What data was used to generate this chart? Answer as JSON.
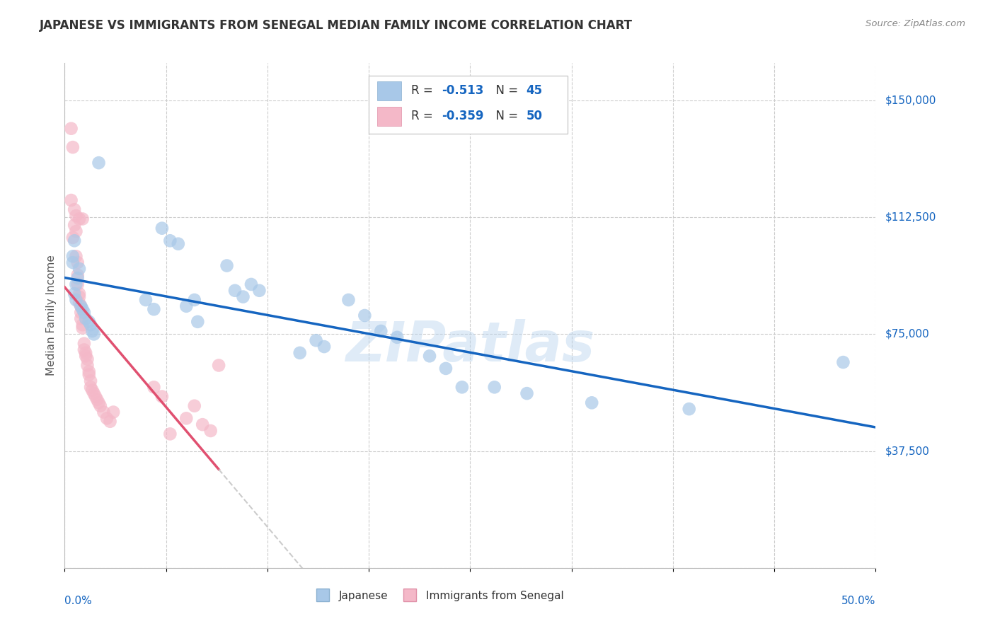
{
  "title": "JAPANESE VS IMMIGRANTS FROM SENEGAL MEDIAN FAMILY INCOME CORRELATION CHART",
  "source": "Source: ZipAtlas.com",
  "ylabel": "Median Family Income",
  "watermark": "ZIPatlas",
  "yticks": [
    0,
    37500,
    75000,
    112500,
    150000
  ],
  "legend_japanese_R": "-0.513",
  "legend_japanese_N": "45",
  "legend_senegal_R": "-0.359",
  "legend_senegal_N": "50",
  "blue_color": "#a8c8e8",
  "pink_color": "#f4b8c8",
  "blue_line_color": "#1565c0",
  "pink_line_color": "#e05070",
  "dashed_line_color": "#cccccc",
  "grid_color": "#cccccc",
  "background_color": "#ffffff",
  "title_color": "#333333",
  "source_color": "#888888",
  "axis_value_color": "#1565c0",
  "ylabel_color": "#555555",
  "legend_text_color": "#333333",
  "legend_value_color": "#1565c0",
  "japanese_x": [
    0.021,
    0.006,
    0.005,
    0.006,
    0.007,
    0.009,
    0.008,
    0.007,
    0.01,
    0.011,
    0.012,
    0.013,
    0.015,
    0.016,
    0.017,
    0.018,
    0.005,
    0.05,
    0.055,
    0.06,
    0.065,
    0.07,
    0.075,
    0.08,
    0.082,
    0.1,
    0.105,
    0.11,
    0.115,
    0.12,
    0.145,
    0.155,
    0.16,
    0.175,
    0.185,
    0.195,
    0.205,
    0.225,
    0.235,
    0.245,
    0.265,
    0.285,
    0.325,
    0.385,
    0.48
  ],
  "japanese_y": [
    130000,
    105000,
    98000,
    88000,
    86000,
    96000,
    93000,
    91000,
    84000,
    83000,
    82000,
    80000,
    79000,
    78000,
    76000,
    75000,
    100000,
    86000,
    83000,
    109000,
    105000,
    104000,
    84000,
    86000,
    79000,
    97000,
    89000,
    87000,
    91000,
    89000,
    69000,
    73000,
    71000,
    86000,
    81000,
    76000,
    74000,
    68000,
    64000,
    58000,
    58000,
    56000,
    53000,
    51000,
    66000
  ],
  "senegal_x": [
    0.004,
    0.004,
    0.005,
    0.005,
    0.006,
    0.006,
    0.007,
    0.007,
    0.007,
    0.008,
    0.008,
    0.008,
    0.009,
    0.009,
    0.009,
    0.009,
    0.01,
    0.01,
    0.01,
    0.011,
    0.011,
    0.011,
    0.012,
    0.012,
    0.013,
    0.013,
    0.014,
    0.014,
    0.015,
    0.015,
    0.016,
    0.016,
    0.017,
    0.018,
    0.019,
    0.02,
    0.021,
    0.022,
    0.024,
    0.026,
    0.028,
    0.03,
    0.055,
    0.06,
    0.065,
    0.075,
    0.08,
    0.085,
    0.09,
    0.095
  ],
  "senegal_y": [
    141000,
    118000,
    135000,
    106000,
    115000,
    110000,
    113000,
    108000,
    100000,
    98000,
    94000,
    91000,
    88000,
    87000,
    85000,
    112000,
    84000,
    82000,
    80000,
    78000,
    77000,
    112000,
    72000,
    70000,
    69000,
    68000,
    67000,
    65000,
    63000,
    62000,
    60000,
    58000,
    57000,
    56000,
    55000,
    54000,
    53000,
    52000,
    50000,
    48000,
    47000,
    50000,
    58000,
    55000,
    43000,
    48000,
    52000,
    46000,
    44000,
    65000
  ],
  "xmin": 0.0,
  "xmax": 0.5,
  "ymin": 0,
  "ymax": 162000,
  "senegal_line_xend": 0.095,
  "senegal_dash_xend": 0.33
}
